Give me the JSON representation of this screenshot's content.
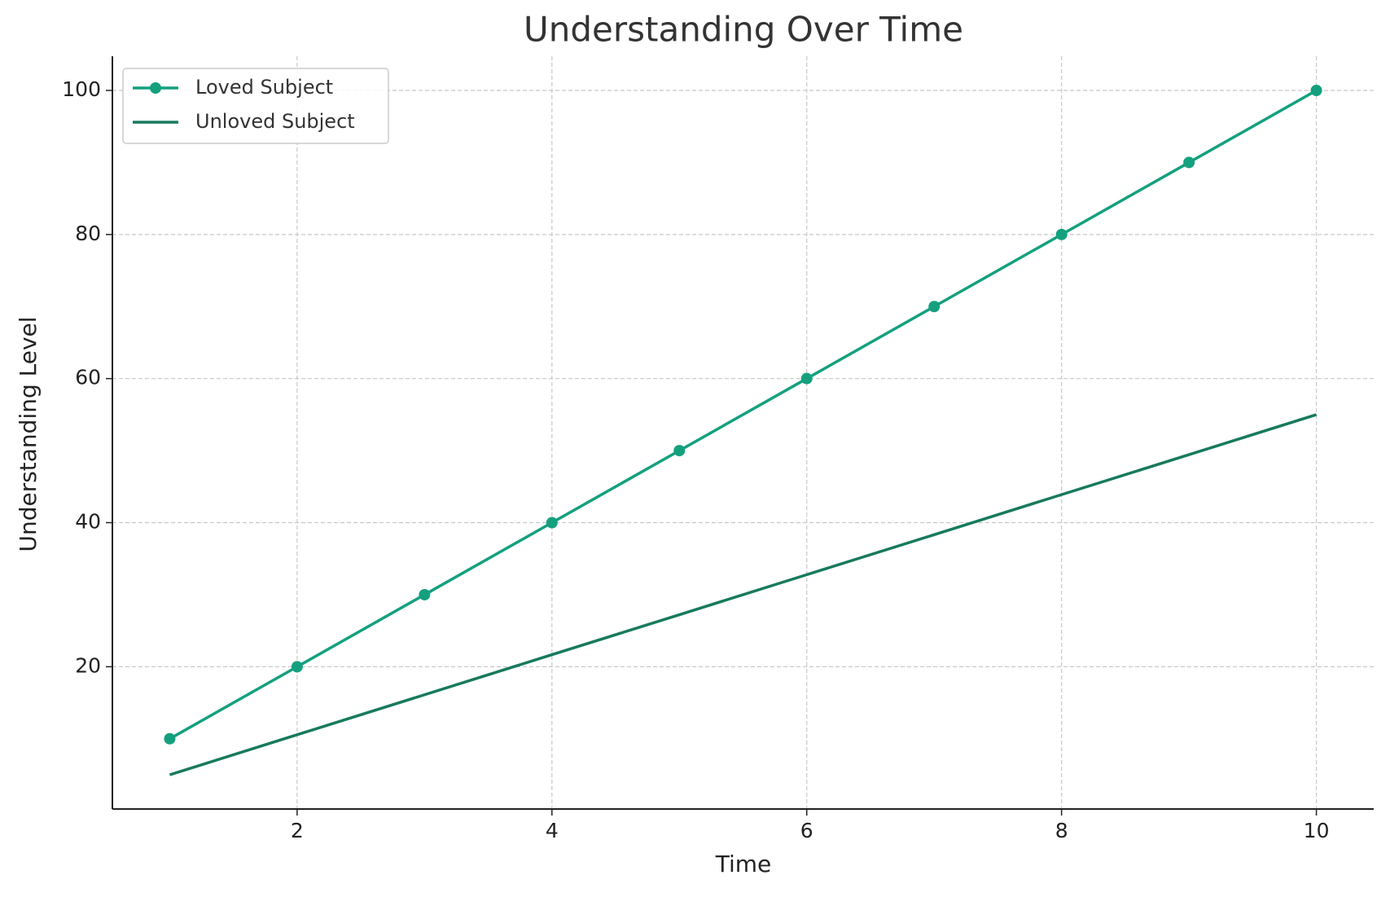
{
  "chart_data": {
    "type": "line",
    "title": "Understanding Over Time",
    "x_label": "Time",
    "y_label": "Understanding Level",
    "x": [
      1,
      2,
      3,
      4,
      5,
      6,
      7,
      8,
      9,
      10
    ],
    "series": [
      {
        "name": "Loved Subject",
        "color": "#14a07e",
        "marker": true,
        "values": [
          10,
          20,
          30,
          40,
          50,
          60,
          70,
          80,
          90,
          100
        ]
      },
      {
        "name": "Unloved Subject",
        "color": "#177a5d",
        "marker": false,
        "values": [
          5,
          10.56,
          16.11,
          21.67,
          27.22,
          32.78,
          38.33,
          43.89,
          49.44,
          55
        ]
      }
    ],
    "xlim": [
      0.55,
      10.45
    ],
    "ylim": [
      0.25,
      104.75
    ],
    "xticks": [
      2,
      4,
      6,
      8,
      10
    ],
    "yticks": [
      20,
      40,
      60,
      80,
      100
    ],
    "grid": true,
    "legend": "upper left"
  }
}
